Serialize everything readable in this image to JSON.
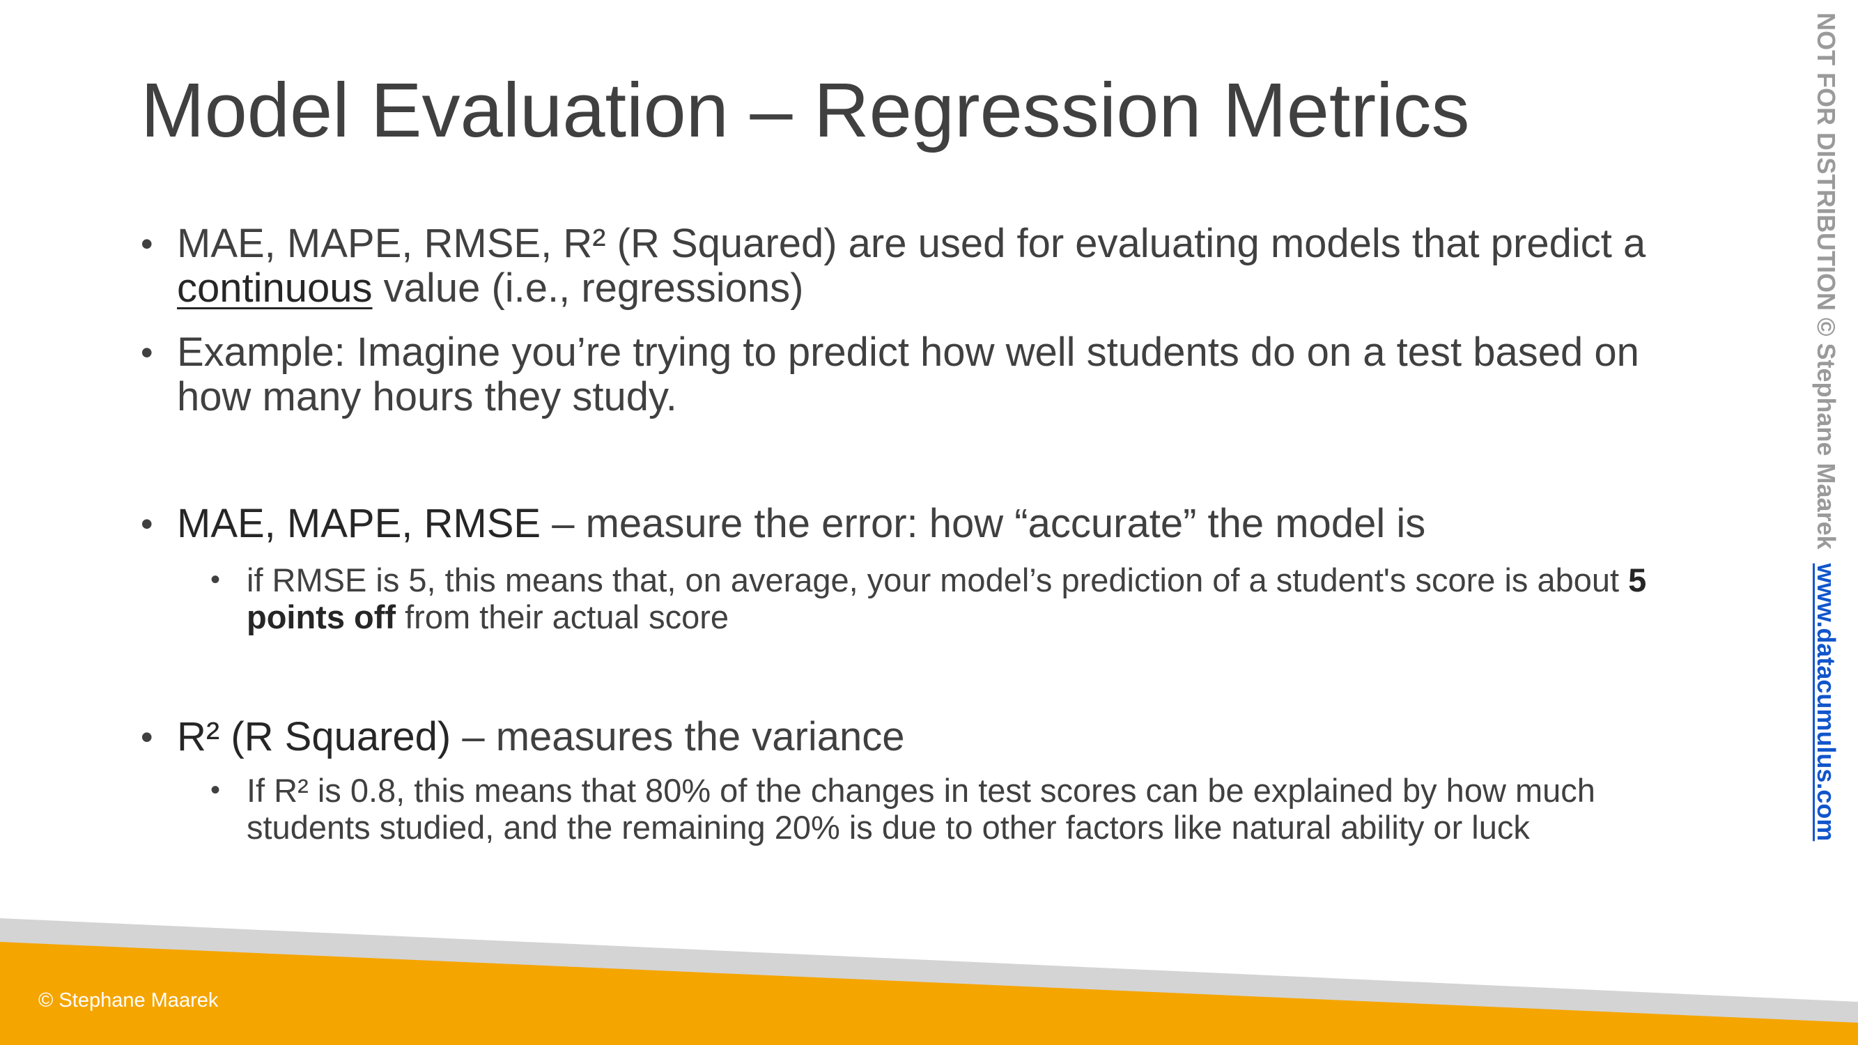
{
  "slide": {
    "title": "Model Evaluation – Regression Metrics",
    "bullets": [
      {
        "parts": [
          "MAE, MAPE, RMSE, R² (R Squared) are used for evaluating models that predict a",
          "continuous",
          "value (i.e., regressions)"
        ]
      },
      {
        "text": "Example: Imagine you’re trying to predict how well students do on a test based on how many hours they study."
      },
      {
        "lead": "MAE, MAPE, RMSE",
        "rest": "– measure the error: how “accurate” the model is",
        "sub": {
          "pre": "if RMSE is 5, this means that, on average, your model’s prediction of a student's score is about",
          "emph": "5 points off",
          "post": "from their actual score"
        }
      },
      {
        "lead": "R² (R Squared)",
        "rest": "– measures the variance",
        "sub": {
          "text": "If R² is 0.8, this means that 80% of the changes in test scores can be explained by how much students studied, and the remaining 20% is due to other factors like natural ability or luck"
        }
      }
    ]
  },
  "footer": {
    "copyright": "© Stephane Maarek"
  },
  "sidebar": {
    "notice": "NOT FOR DISTRIBUTION © Stephane Maarek",
    "link": "www.datacumulus.com"
  },
  "colors": {
    "accent": "#f5a500",
    "band_gray": "#d4d4d4",
    "text": "#404040",
    "watermark": "#9a9a9a",
    "link": "#1155cc"
  },
  "bullet_icon": "bullet-dot"
}
